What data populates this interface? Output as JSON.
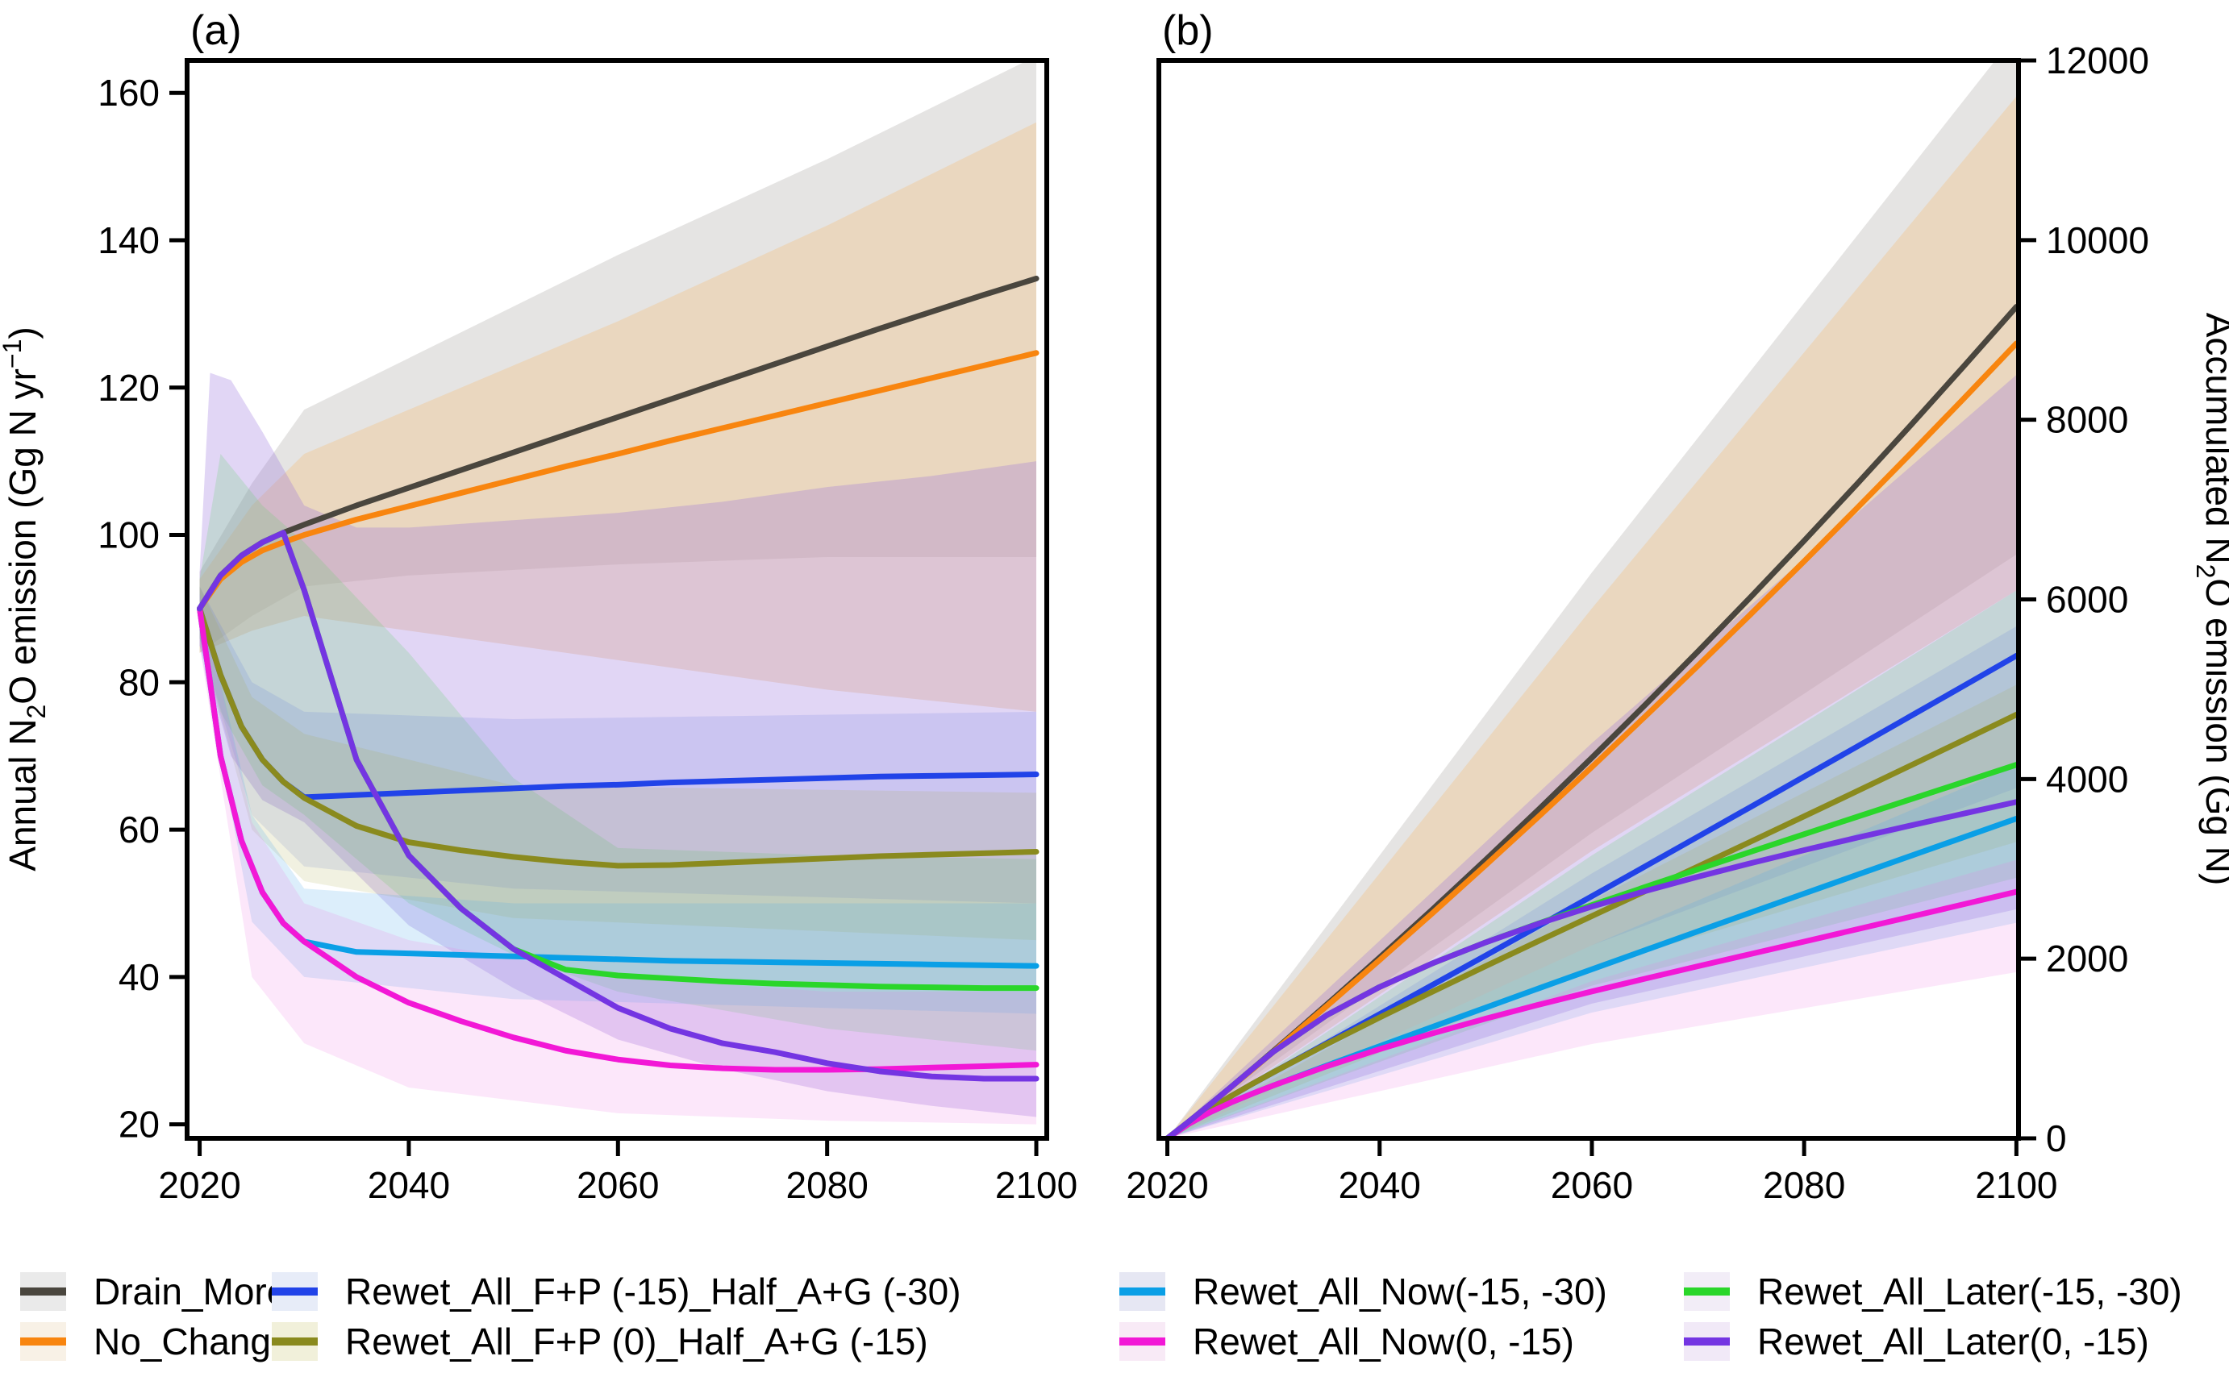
{
  "figure_background": "#ffffff",
  "chart_data": [
    {
      "type": "line",
      "title": "(a)",
      "xlabel": "",
      "ylabel": "Annual N2O emission (Gg N yr-1)",
      "ylabel_rich": {
        "pre": "Annual N",
        "sub": "2",
        "mid": "O emission (Gg N yr",
        "sup": "−1",
        "post": ")"
      },
      "ylabel_side": "left",
      "xlim": [
        2018.8,
        2101.0
      ],
      "ylim": [
        18.1,
        164.4
      ],
      "x_ticks": [
        2020,
        2040,
        2060,
        2080,
        2100
      ],
      "y_ticks": [
        20,
        40,
        60,
        80,
        100,
        120,
        140,
        160
      ],
      "grid": false,
      "x": [
        2020,
        2022,
        2024,
        2026,
        2028,
        2030,
        2035,
        2040,
        2045,
        2050,
        2055,
        2060,
        2065,
        2070,
        2075,
        2080,
        2085,
        2090,
        2095,
        2100
      ],
      "series": [
        {
          "name": "Drain_More",
          "color": "#4a463e",
          "values": [
            90,
            94.5,
            97.2,
            99,
            100.3,
            101.4,
            104,
            106.4,
            108.8,
            111.2,
            113.6,
            116,
            118.4,
            120.8,
            123.2,
            125.6,
            128,
            130.3,
            132.6,
            134.8
          ]
        },
        {
          "name": "No_Change",
          "color": "#f8850f",
          "values": [
            90,
            94,
            96.3,
            97.9,
            99,
            100,
            102.1,
            103.9,
            105.7,
            107.5,
            109.3,
            111,
            112.8,
            114.5,
            116.2,
            117.9,
            119.6,
            121.3,
            123,
            124.7
          ]
        },
        {
          "name": "Rewet_All_F+P (-15)_Half_A+G (-30)",
          "color": "#2143e8",
          "values": [
            90,
            81,
            74,
            69.5,
            66.5,
            64.4,
            64.7,
            65,
            65.3,
            65.6,
            65.9,
            66.1,
            66.4,
            66.6,
            66.8,
            67,
            67.2,
            67.3,
            67.4,
            67.5
          ]
        },
        {
          "name": "Rewet_All_F+P (0)_Half_A+G (-15)",
          "color": "#8a8a1e",
          "values": [
            90,
            81,
            74,
            69.5,
            66.5,
            64.3,
            60.5,
            58.3,
            57.2,
            56.3,
            55.6,
            55.1,
            55.2,
            55.5,
            55.8,
            56.1,
            56.4,
            56.6,
            56.8,
            57
          ]
        },
        {
          "name": "Rewet_All_Now(-15, -30)",
          "color": "#0a9fe6",
          "values": [
            90,
            70,
            58.5,
            51.5,
            47.3,
            44.8,
            43.4,
            43.2,
            43,
            42.8,
            42.6,
            42.4,
            42.2,
            42.1,
            42,
            41.9,
            41.8,
            41.7,
            41.6,
            41.5
          ]
        },
        {
          "name": "Rewet_All_Now(0, -15)",
          "color": "#f218d6",
          "values": [
            90,
            70,
            58.5,
            51.5,
            47.3,
            44.8,
            40,
            36.5,
            34,
            31.8,
            30,
            28.8,
            28,
            27.6,
            27.4,
            27.4,
            27.5,
            27.7,
            27.9,
            28.1
          ]
        },
        {
          "name": "Rewet_All_Later(-15, -30)",
          "color": "#2ad62a",
          "values": [
            90,
            94.5,
            97.2,
            99,
            100.3,
            92.5,
            69.5,
            56.5,
            49.3,
            43.8,
            41,
            40.2,
            39.8,
            39.4,
            39.1,
            38.9,
            38.7,
            38.6,
            38.5,
            38.5
          ]
        },
        {
          "name": "Rewet_All_Later(0, -15)",
          "color": "#7435e2",
          "values": [
            90,
            94.5,
            97.2,
            99,
            100.3,
            92.5,
            69.5,
            56.5,
            49.3,
            43.8,
            39.8,
            35.8,
            33,
            31,
            29.8,
            28.3,
            27.2,
            26.5,
            26.2,
            26.2
          ]
        }
      ],
      "bands": [
        {
          "name": "Drain_More CI",
          "color": "rgba(150,148,145,0.25)",
          "x": [
            2020,
            2025,
            2030,
            2040,
            2060,
            2080,
            2100
          ],
          "hi": [
            95,
            107,
            117,
            124,
            138,
            151,
            165
          ],
          "lo": [
            84,
            89,
            93,
            94.5,
            96,
            97,
            97
          ]
        },
        {
          "name": "No_Change CI",
          "color": "rgba(242,194,134,0.38)",
          "x": [
            2020,
            2025,
            2030,
            2040,
            2060,
            2080,
            2100
          ],
          "hi": [
            94,
            104,
            111,
            117,
            129,
            142,
            156
          ],
          "lo": [
            84,
            87,
            89,
            87,
            83,
            79,
            76
          ]
        },
        {
          "name": "Rewet_All_Later(0, -15) CI",
          "color": "rgba(148,108,218,0.28)",
          "x": [
            2020,
            2021,
            2023,
            2026,
            2030,
            2035,
            2040,
            2050,
            2060,
            2070,
            2080,
            2090,
            2100
          ],
          "hi": [
            95,
            122,
            121,
            114,
            104,
            101,
            101,
            102,
            103,
            104.5,
            106.5,
            108,
            110
          ],
          "lo": [
            85,
            80,
            70,
            64,
            61,
            54,
            47,
            38.5,
            31.5,
            27.5,
            24.5,
            22.5,
            21
          ]
        },
        {
          "name": "Rewet_All_Later(-15, -30) CI",
          "color": "rgba(100,210,110,0.22)",
          "x": [
            2020,
            2022,
            2026,
            2030,
            2040,
            2050,
            2060,
            2080,
            2100
          ],
          "hi": [
            94,
            111,
            104,
            99,
            84,
            67,
            57.5,
            56.5,
            56
          ],
          "lo": [
            86,
            76,
            66,
            62,
            50,
            43,
            38,
            33,
            30
          ]
        },
        {
          "name": "Rewet_All_F+P (-15)_Half_A+G (-30) CI",
          "color": "rgba(70,100,220,0.14)",
          "x": [
            2020,
            2025,
            2030,
            2050,
            2100
          ],
          "hi": [
            93,
            80,
            76,
            75,
            76
          ],
          "lo": [
            86,
            62,
            55,
            52,
            50
          ]
        },
        {
          "name": "Rewet_All_F+P (0)_Half_A+G (-15) CI",
          "color": "rgba(170,170,70,0.16)",
          "x": [
            2020,
            2025,
            2030,
            2050,
            2100
          ],
          "hi": [
            93,
            78,
            73,
            66,
            65
          ],
          "lo": [
            86,
            60,
            53,
            48,
            45
          ]
        },
        {
          "name": "Rewet_All_Now(-15, -30) CI",
          "color": "rgba(80,170,235,0.20)",
          "x": [
            2020,
            2025,
            2030,
            2050,
            2100
          ],
          "hi": [
            92,
            62,
            52,
            50,
            50
          ],
          "lo": [
            85,
            47.5,
            40,
            37,
            35
          ]
        },
        {
          "name": "Rewet_All_Now(0, -15) CI",
          "color": "rgba(238,120,225,0.18)",
          "x": [
            2020,
            2025,
            2030,
            2040,
            2060,
            2080,
            2100
          ],
          "hi": [
            92,
            61,
            50,
            45,
            40,
            38,
            38
          ],
          "lo": [
            85,
            40,
            31,
            25,
            21.5,
            20.5,
            20
          ]
        }
      ]
    },
    {
      "type": "line",
      "title": "(b)",
      "xlabel": "",
      "ylabel": "Accumulated N2O emission (Gg N)",
      "ylabel_rich": {
        "pre": "Accumulated N",
        "sub": "2",
        "mid": "O emission (Gg N)",
        "sup": "",
        "post": ""
      },
      "ylabel_side": "right",
      "xlim": [
        2019.2,
        2100.2
      ],
      "ylim": [
        0,
        12000
      ],
      "x_ticks": [
        2020,
        2040,
        2060,
        2080,
        2100
      ],
      "y_ticks": [
        0,
        2000,
        4000,
        6000,
        8000,
        10000,
        12000
      ],
      "grid": false,
      "x": [
        2020,
        2022,
        2024,
        2026,
        2028,
        2030,
        2035,
        2040,
        2045,
        2050,
        2055,
        2060,
        2065,
        2070,
        2075,
        2080,
        2085,
        2090,
        2095,
        2100
      ],
      "series": [
        {
          "name": "Drain_More",
          "color": "#4a463e",
          "values": [
            0,
            184,
            376,
            572,
            772,
            973,
            1487,
            2013,
            2551,
            3101,
            3663,
            4237,
            4823,
            5421,
            6031,
            6653,
            7287,
            7933,
            8590,
            9258
          ]
        },
        {
          "name": "No_Change",
          "color": "#f8850f",
          "values": [
            0,
            184,
            374,
            569,
            765,
            964,
            1470,
            1985,
            2509,
            3042,
            3584,
            4134,
            4694,
            5262,
            5839,
            6424,
            7018,
            7620,
            8231,
            8850
          ]
        },
        {
          "name": "Rewet_All_F+P (-15)_Half_A+G (-30)",
          "color": "#2143e8",
          "values": [
            0,
            171,
            326,
            470,
            606,
            736,
            1059,
            1383,
            1709,
            2036,
            2365,
            2695,
            3026,
            3359,
            3692,
            4027,
            4362,
            4699,
            5035,
            5373
          ]
        },
        {
          "name": "Rewet_All_F+P (0)_Half_A+G (-15)",
          "color": "#8a8a1e",
          "values": [
            0,
            171,
            326,
            470,
            606,
            736,
            1048,
            1345,
            1634,
            1918,
            2198,
            2474,
            2750,
            3027,
            3305,
            3585,
            3866,
            4149,
            4432,
            4717
          ]
        },
        {
          "name": "Rewet_All_Now(-15, -30)",
          "color": "#0a9fe6",
          "values": [
            0,
            160,
            289,
            399,
            497,
            589,
            810,
            1026,
            1242,
            1456,
            1670,
            1882,
            2094,
            2305,
            2515,
            2725,
            2934,
            3143,
            3351,
            3559
          ]
        },
        {
          "name": "Rewet_All_Now(0, -15)",
          "color": "#f218d6",
          "values": [
            0,
            160,
            289,
            399,
            497,
            589,
            801,
            993,
            1169,
            1333,
            1488,
            1635,
            1777,
            1916,
            2053,
            2190,
            2328,
            2466,
            2605,
            2745
          ]
        },
        {
          "name": "Rewet_All_Later(-15, -30)",
          "color": "#2ad62a",
          "values": [
            0,
            185,
            376,
            572,
            772,
            965,
            1370,
            1685,
            1949,
            2182,
            2394,
            2597,
            2797,
            2995,
            3191,
            3386,
            3580,
            3773,
            3966,
            4159
          ]
        },
        {
          "name": "Rewet_All_Later(0, -15)",
          "color": "#7435e2",
          "values": [
            0,
            185,
            376,
            572,
            772,
            965,
            1370,
            1685,
            1949,
            2182,
            2391,
            2580,
            2752,
            2912,
            3064,
            3209,
            3348,
            3482,
            3614,
            3745
          ]
        }
      ],
      "bands": [
        {
          "name": "Drain_More CI",
          "color": "rgba(150,148,145,0.25)",
          "x": [
            2020,
            2060,
            2100
          ],
          "hi": [
            0,
            6300,
            12300
          ],
          "lo": [
            0,
            3400,
            6500
          ]
        },
        {
          "name": "No_Change CI",
          "color": "rgba(242,194,134,0.38)",
          "x": [
            2020,
            2060,
            2100
          ],
          "hi": [
            0,
            5900,
            11600
          ],
          "lo": [
            0,
            3200,
            6100
          ]
        },
        {
          "name": "Rewet_All_Later(0, -15) CI",
          "color": "rgba(148,108,218,0.28)",
          "x": [
            2020,
            2060,
            2100
          ],
          "hi": [
            0,
            4400,
            8500
          ],
          "lo": [
            0,
            1500,
            2550
          ]
        },
        {
          "name": "Rewet_All_Later(-15, -30) CI",
          "color": "rgba(100,210,110,0.22)",
          "x": [
            2020,
            2060,
            2100
          ],
          "hi": [
            0,
            3150,
            6100
          ],
          "lo": [
            0,
            1700,
            2900
          ]
        },
        {
          "name": "Rewet_All_F+P (-15)_Half_A+G (-30) CI",
          "color": "rgba(70,100,220,0.14)",
          "x": [
            2020,
            2060,
            2100
          ],
          "hi": [
            0,
            2950,
            5700
          ],
          "lo": [
            0,
            2150,
            3900
          ]
        },
        {
          "name": "Rewet_All_F+P (0)_Half_A+G (-15) CI",
          "color": "rgba(170,170,70,0.16)",
          "x": [
            2020,
            2060,
            2100
          ],
          "hi": [
            0,
            2650,
            5050
          ],
          "lo": [
            0,
            1900,
            3300
          ]
        },
        {
          "name": "Rewet_All_Now(-15, -30) CI",
          "color": "rgba(80,170,235,0.20)",
          "x": [
            2020,
            2060,
            2100
          ],
          "hi": [
            0,
            2150,
            4150
          ],
          "lo": [
            0,
            1400,
            2400
          ]
        },
        {
          "name": "Rewet_All_Now(0, -15) CI",
          "color": "rgba(238,120,225,0.18)",
          "x": [
            2020,
            2060,
            2100
          ],
          "hi": [
            0,
            1750,
            3100
          ],
          "lo": [
            0,
            1050,
            1850
          ]
        }
      ]
    }
  ],
  "legend": {
    "columns": [
      {
        "items": [
          {
            "label": "Drain_More",
            "line": "#4a463e",
            "fill": "#eaeaea"
          },
          {
            "label": "No_Change",
            "line": "#f8850f",
            "fill": "#f8f1e6"
          }
        ]
      },
      {
        "items": [
          {
            "label": "Rewet_All_F+P (-15)_Half_A+G (-30)",
            "line": "#2143e8",
            "fill": "#e7ecf8"
          },
          {
            "label": "Rewet_All_F+P (0)_Half_A+G (-15)",
            "line": "#8a8a1e",
            "fill": "#f1f0da"
          }
        ]
      },
      {
        "items": [
          {
            "label": "Rewet_All_Now(-15, -30)",
            "line": "#0a9fe6",
            "fill": "#e6e7f3"
          },
          {
            "label": "Rewet_All_Now(0, -15)",
            "line": "#f218d6",
            "fill": "#f8eaf6"
          }
        ]
      },
      {
        "items": [
          {
            "label": "Rewet_All_Later(-15, -30)",
            "line": "#2ad62a",
            "fill": "#f2edf7"
          },
          {
            "label": "Rewet_All_Later(0, -15)",
            "line": "#7435e2",
            "fill": "#f1e9f7"
          }
        ]
      }
    ]
  }
}
